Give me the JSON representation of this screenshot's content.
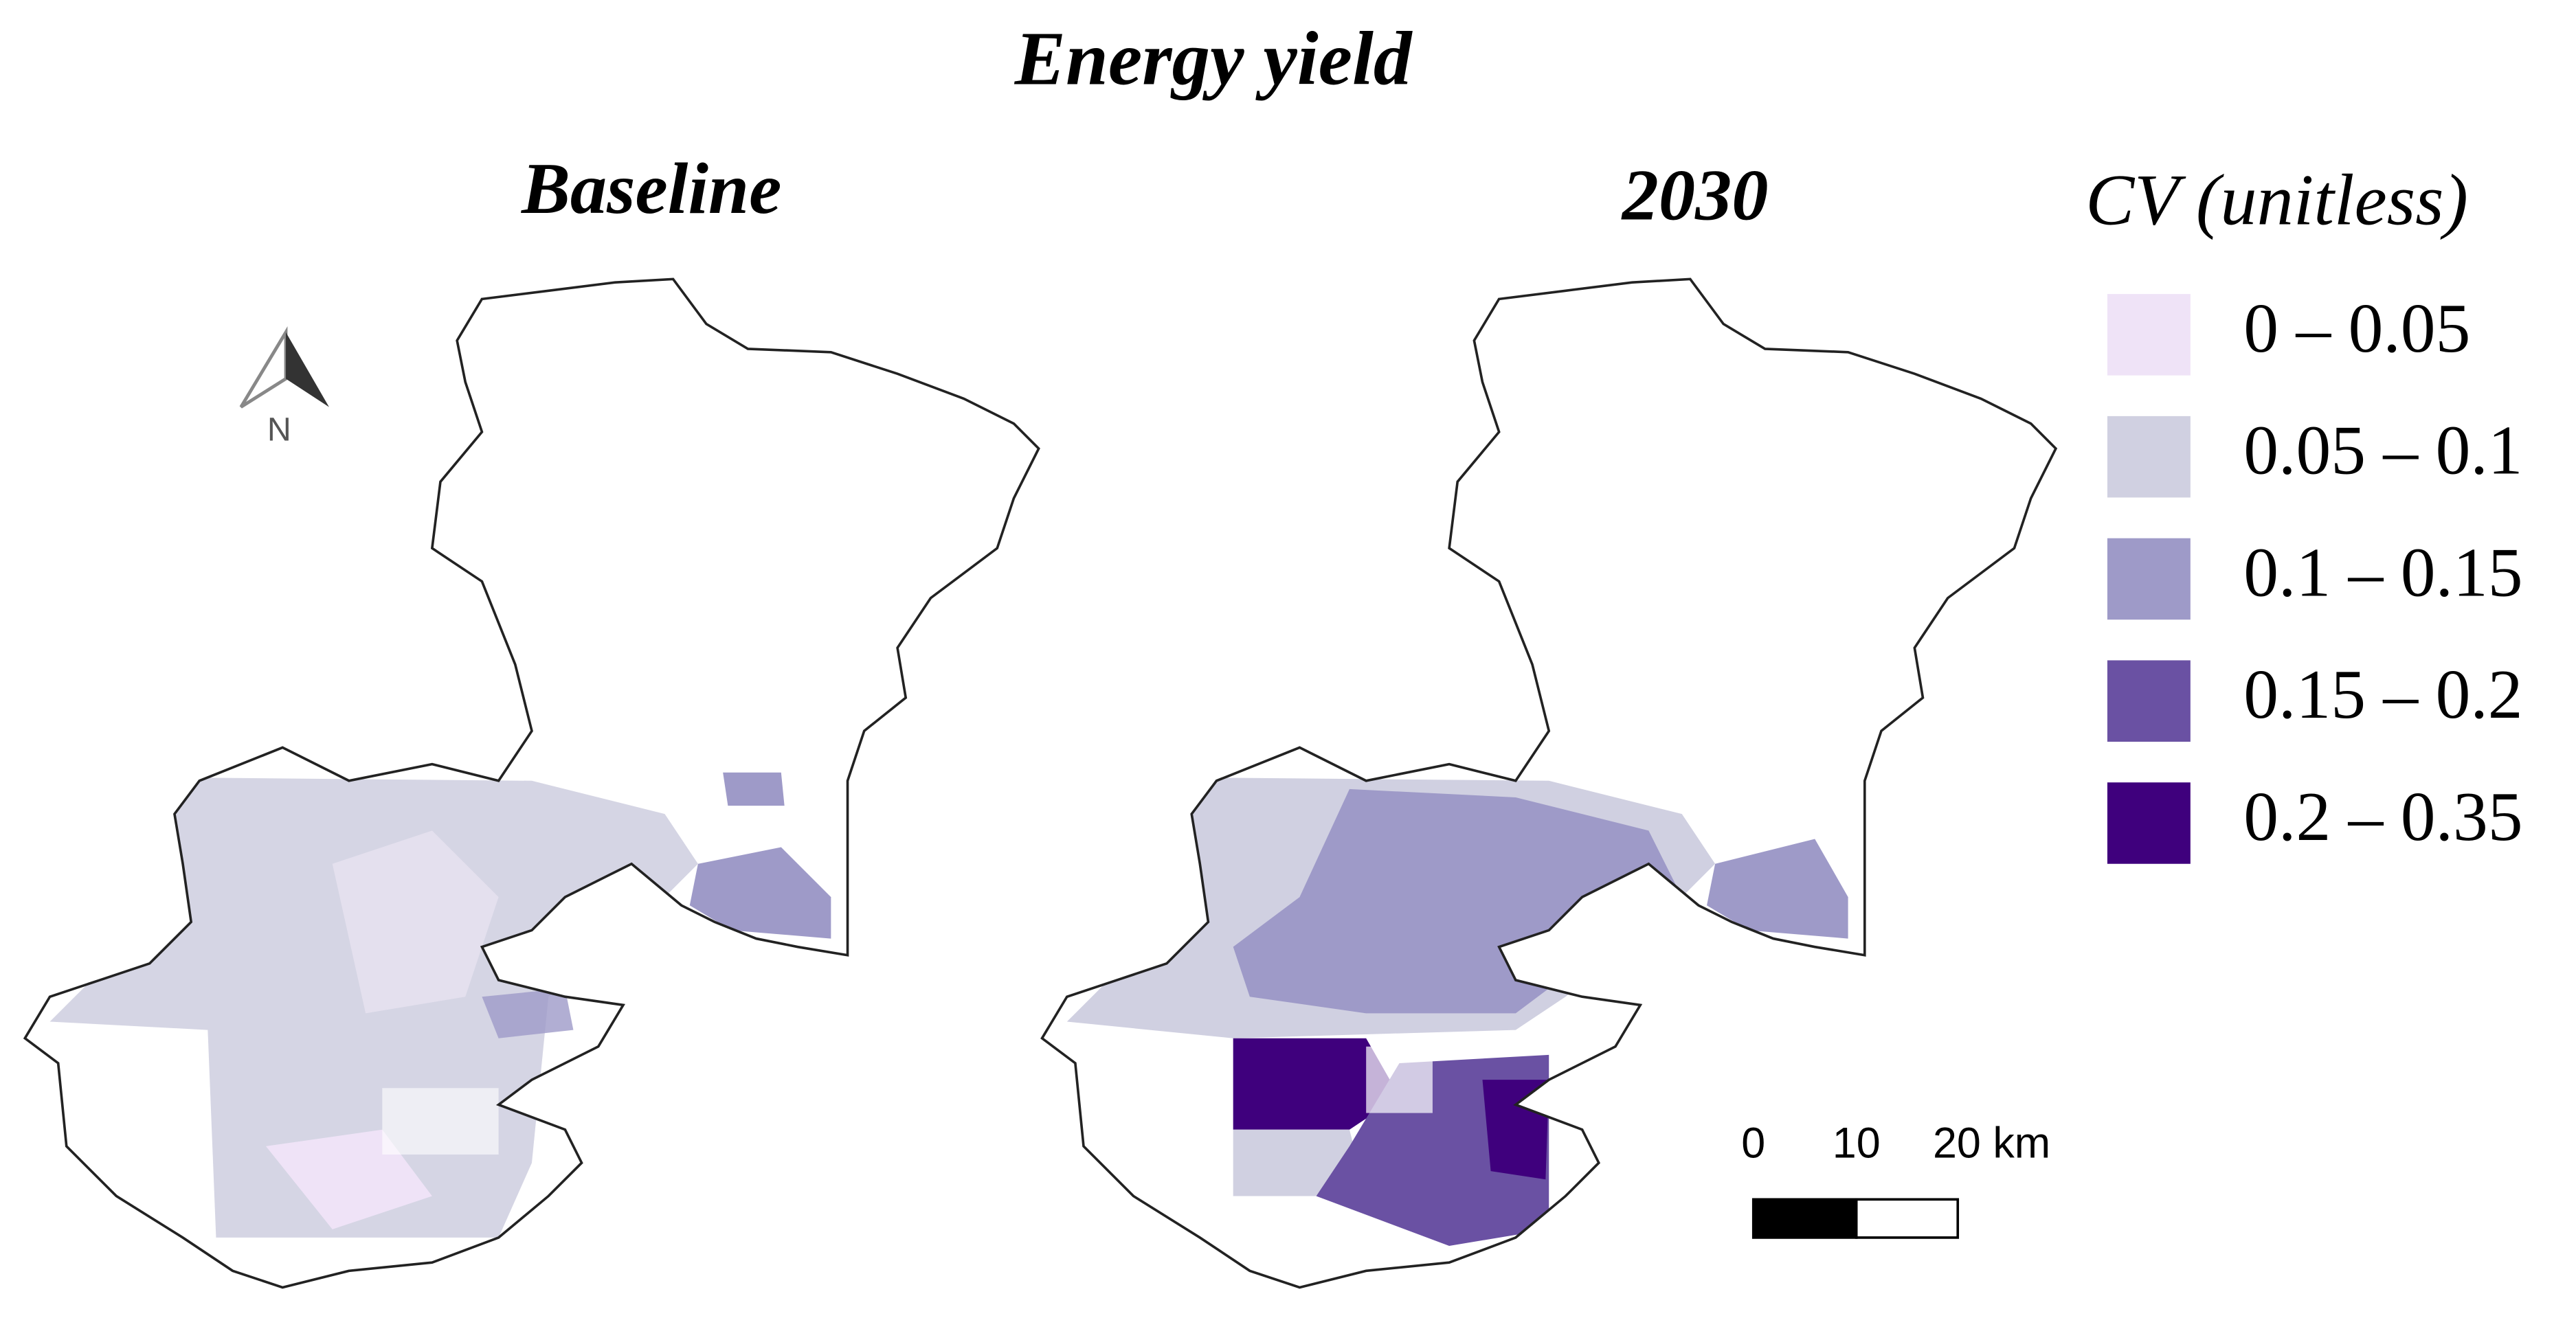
{
  "title": "Energy yield",
  "panels": [
    {
      "title": "Baseline"
    },
    {
      "title": "2030"
    }
  ],
  "north_arrow": {
    "label": "N"
  },
  "legend": {
    "title": "CV (unitless)",
    "items": [
      {
        "label": "0 – 0.05",
        "color": "#efe3f7"
      },
      {
        "label": "0.05 – 0.1",
        "color": "#d0d0e1"
      },
      {
        "label": "0.1 – 0.15",
        "color": "#9e9ac8"
      },
      {
        "label": "0.15 – 0.2",
        "color": "#6a51a3"
      },
      {
        "label": "0.2 – 0.35",
        "color": "#3f007d"
      }
    ]
  },
  "scale_bar": {
    "labels": [
      "0",
      "10",
      "20 km"
    ]
  }
}
